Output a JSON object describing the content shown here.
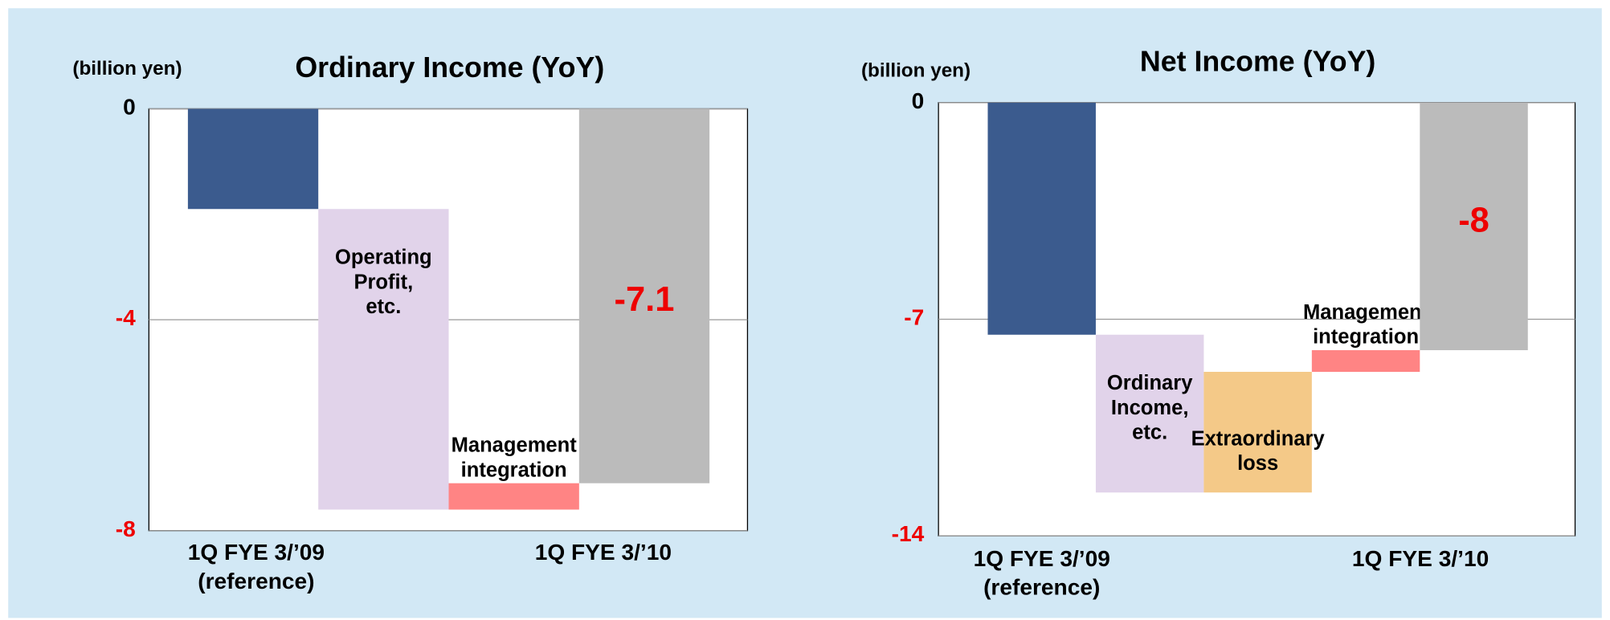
{
  "chart_data": [
    {
      "type": "waterfall",
      "title": "Ordinary Income (YoY)",
      "y_label": "(billion yen)",
      "categories": [
        "1Q FYE 3/’09\n(reference)",
        null,
        null,
        "1Q FYE 3/’10"
      ],
      "bar_labels": [
        null,
        "Operating\nProfit,\netc.",
        "Management\nintegration",
        null
      ],
      "values": [
        -1.9,
        -5.7,
        0.5,
        -7.1
      ],
      "colors": [
        "#3b5b8e",
        "#e1d3ea",
        "#ff8484",
        "#bbbbbb"
      ],
      "ylim": [
        -8,
        0
      ],
      "yticks": [
        0,
        -4,
        -8
      ],
      "grid": true
    },
    {
      "type": "waterfall",
      "title": "Net Income (YoY)",
      "y_label": "(billion yen)",
      "categories": [
        "1Q FYE 3/’09\n(reference)",
        null,
        null,
        null,
        "1Q FYE 3/’10"
      ],
      "bar_labels": [
        null,
        "Ordinary\nIncome,\netc.",
        "Extraordinary\nloss",
        "Management\nintegration",
        null
      ],
      "values": [
        -7.5,
        -5.1,
        3.9,
        0.7,
        -8.0
      ],
      "colors": [
        "#3b5b8e",
        "#e1d3ea",
        "#f4c988",
        "#ff8484",
        "#bbbbbb"
      ],
      "ylim": [
        -14,
        0
      ],
      "yticks": [
        0,
        -7,
        -14
      ],
      "grid": true
    }
  ]
}
